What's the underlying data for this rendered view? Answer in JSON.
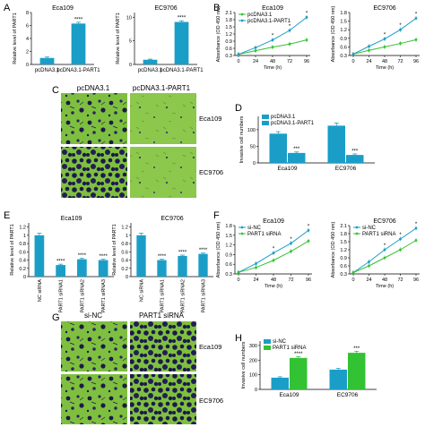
{
  "panel_labels": {
    "A": "A",
    "B": "B",
    "C": "C",
    "D": "D",
    "E": "E",
    "F": "F",
    "G": "G",
    "H": "H"
  },
  "colors": {
    "teal": "#1a9ec8",
    "green": "#33c233",
    "err_teal": "#1a9ec8",
    "micro_bg": "#7fbf3f",
    "micro_dark": "#1c1a4a"
  },
  "micrograph_C": {
    "columns": [
      "pcDNA3.1",
      "pcDNA3.1-PART1"
    ],
    "rows": [
      "Eca109",
      "EC9706"
    ]
  },
  "micrograph_G": {
    "columns": [
      "si-NC",
      "PART1 siRNA"
    ],
    "rows": [
      "Eca109",
      "EC9706"
    ]
  },
  "chart_data": [
    {
      "id": "A1",
      "type": "bar",
      "title": "Eca109",
      "ylabel": "Relative level of PART1",
      "categories": [
        "pcDNA3.1",
        "pcDNA3.1-PART1"
      ],
      "values": [
        1.0,
        6.3
      ],
      "errors": [
        0.15,
        0.2
      ],
      "ylim": [
        0,
        8
      ],
      "colors": [
        "teal",
        "teal"
      ],
      "sig": [
        "",
        "****"
      ]
    },
    {
      "id": "A2",
      "type": "bar",
      "title": "EC9706",
      "ylabel": "Relative level of PART1",
      "categories": [
        "pcDNA3.1",
        "pcDNA3.1-PART1"
      ],
      "values": [
        1.0,
        9.0
      ],
      "errors": [
        0.12,
        0.25
      ],
      "ylim": [
        0,
        11
      ],
      "colors": [
        "teal",
        "teal"
      ],
      "sig": [
        "",
        "****"
      ]
    },
    {
      "id": "B1",
      "type": "line",
      "title": "Eca109",
      "ylabel": "Absorbance (OD 450 nm)",
      "xlabel": "Time (h)",
      "x": [
        0,
        24,
        48,
        72,
        96
      ],
      "yticks": [
        0.3,
        0.6,
        0.9,
        1.2,
        1.5,
        1.8,
        2.1
      ],
      "ylim": [
        0.3,
        2.1
      ],
      "legend": "top-left",
      "series": [
        {
          "name": "pcDNA3.1",
          "color": "green",
          "values": [
            0.35,
            0.5,
            0.65,
            0.78,
            0.95
          ]
        },
        {
          "name": "pcDNA3.1-PART1",
          "color": "teal",
          "values": [
            0.35,
            0.63,
            0.95,
            1.35,
            1.9
          ]
        }
      ],
      "sig": [
        "",
        "",
        "*",
        "*",
        "*"
      ]
    },
    {
      "id": "B2",
      "type": "line",
      "title": "EC9706",
      "ylabel": "Absorbance (OD 450 nm)",
      "xlabel": "Time (h)",
      "x": [
        0,
        24,
        48,
        72,
        96
      ],
      "yticks": [
        0.3,
        0.6,
        0.9,
        1.2,
        1.5,
        1.8
      ],
      "ylim": [
        0.3,
        1.8
      ],
      "series": [
        {
          "name": "",
          "color": "green",
          "values": [
            0.35,
            0.48,
            0.6,
            0.72,
            0.85
          ]
        },
        {
          "name": "",
          "color": "teal",
          "values": [
            0.35,
            0.62,
            0.88,
            1.2,
            1.6
          ]
        }
      ],
      "sig": [
        "",
        "",
        "*",
        "*",
        "*"
      ]
    },
    {
      "id": "D",
      "type": "bar",
      "ylabel": "Invasive cell numbers",
      "categories": [
        "Eca109",
        "EC9706"
      ],
      "ylim": [
        0,
        140
      ],
      "yticks": [
        0,
        50,
        100
      ],
      "legend": "top-left",
      "series": [
        {
          "name": "pcDNA3.1",
          "color": "teal",
          "values": [
            88,
            112
          ],
          "errors": [
            6,
            8
          ]
        },
        {
          "name": "pcDNA3.1-PART1",
          "color": "teal",
          "values": [
            30,
            24
          ],
          "errors": [
            3,
            3
          ]
        }
      ],
      "sig": [
        "***",
        "***"
      ]
    },
    {
      "id": "E1",
      "type": "bar",
      "title": "Eca109",
      "ylabel": "Relative level of PART1",
      "categories": [
        "NC siRNA",
        "PART1 siRNA1",
        "PART1 siRNA2",
        "PART1 siRNA3"
      ],
      "values": [
        1.0,
        0.28,
        0.42,
        0.4
      ],
      "errors": [
        0.05,
        0.02,
        0.02,
        0.02
      ],
      "ylim": [
        0,
        1.3
      ],
      "yticks": [
        0,
        0.2,
        0.4,
        0.6,
        0.8,
        1.0,
        1.2
      ],
      "colors": [
        "teal",
        "teal",
        "teal",
        "teal"
      ],
      "sig": [
        "",
        "****",
        "****",
        "****"
      ]
    },
    {
      "id": "E2",
      "type": "bar",
      "title": "EC9706",
      "ylabel": "Relative level of PART1",
      "categories": [
        "NC siRNA",
        "PART1 siRNA1",
        "PART1 siRNA2",
        "PART1 siRNA3"
      ],
      "values": [
        1.0,
        0.4,
        0.5,
        0.55
      ],
      "errors": [
        0.05,
        0.02,
        0.02,
        0.02
      ],
      "ylim": [
        0,
        1.3
      ],
      "yticks": [
        0,
        0.2,
        0.4,
        0.6,
        0.8,
        1.0,
        1.2
      ],
      "colors": [
        "teal",
        "teal",
        "teal",
        "teal"
      ],
      "sig": [
        "",
        "****",
        "****",
        "****"
      ]
    },
    {
      "id": "F1",
      "type": "line",
      "title": "Eca109",
      "ylabel": "Absorbance (OD 450 nm)",
      "xlabel": "Time (h)",
      "x": [
        0,
        24,
        48,
        72,
        96
      ],
      "yticks": [
        0.3,
        0.6,
        0.9,
        1.2,
        1.5,
        1.8
      ],
      "ylim": [
        0.3,
        1.8
      ],
      "legend": "top-left",
      "series": [
        {
          "name": "si-NC",
          "color": "teal",
          "values": [
            0.35,
            0.62,
            0.95,
            1.25,
            1.65
          ]
        },
        {
          "name": "PART1 siRNA",
          "color": "green",
          "values": [
            0.35,
            0.5,
            0.72,
            1.0,
            1.32
          ]
        }
      ],
      "sig": [
        "",
        "",
        "*",
        "*",
        "*"
      ]
    },
    {
      "id": "F2",
      "type": "line",
      "title": "EC9706",
      "ylabel": "Absorbance (OD 450 nm)",
      "xlabel": "Time (h)",
      "x": [
        0,
        24,
        48,
        72,
        96
      ],
      "yticks": [
        0.3,
        0.6,
        0.9,
        1.2,
        1.5,
        1.8,
        2.1
      ],
      "ylim": [
        0.3,
        2.1
      ],
      "legend": "top-left",
      "series": [
        {
          "name": "si-NC",
          "color": "teal",
          "values": [
            0.35,
            0.75,
            1.2,
            1.6,
            2.0
          ]
        },
        {
          "name": "PART1 siRNA",
          "color": "green",
          "values": [
            0.35,
            0.6,
            0.9,
            1.2,
            1.55
          ]
        }
      ],
      "sig": [
        "",
        "",
        "*",
        "*",
        "*"
      ]
    },
    {
      "id": "H",
      "type": "bar",
      "ylabel": "Invasive cell numbers",
      "categories": [
        "Eca109",
        "EC9706"
      ],
      "ylim": [
        0,
        330
      ],
      "yticks": [
        0,
        100,
        200,
        300
      ],
      "legend": "top-left",
      "series": [
        {
          "name": "si-NC",
          "color": "teal",
          "values": [
            80,
            135
          ],
          "errors": [
            6,
            8
          ]
        },
        {
          "name": "PART1 siRNA",
          "color": "green",
          "values": [
            215,
            250
          ],
          "errors": [
            8,
            10
          ]
        }
      ],
      "sig": [
        "****",
        "***"
      ]
    }
  ]
}
